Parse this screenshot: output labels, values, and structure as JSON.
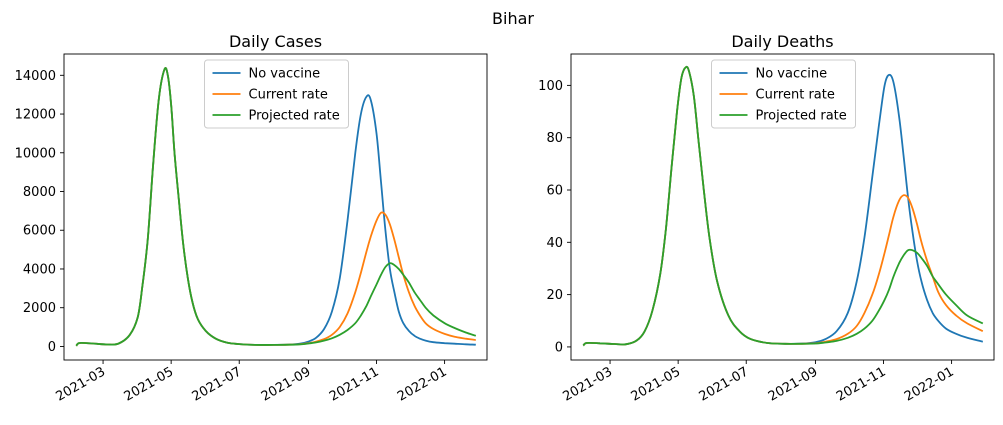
{
  "figure": {
    "suptitle": "Bihar"
  },
  "colors": {
    "No vaccine": "#1f77b4",
    "Current rate": "#ff7f0e",
    "Projected rate": "#2ca02c"
  },
  "chart_data": [
    {
      "type": "line",
      "title": "Daily Cases",
      "xlabel": "",
      "ylabel": "",
      "x_ticks": [
        "2021-03",
        "2021-05",
        "2021-07",
        "2021-09",
        "2021-11",
        "2022-01"
      ],
      "x_range": [
        "2021-01-25",
        "2022-02-08"
      ],
      "y_ticks": [
        0,
        2000,
        4000,
        6000,
        8000,
        10000,
        12000,
        14000
      ],
      "ylim": [
        -700,
        15100
      ],
      "legend": "top-center",
      "x": [
        "2021-02-05",
        "2021-02-08",
        "2021-02-20",
        "2021-03-05",
        "2021-03-15",
        "2021-03-25",
        "2021-04-01",
        "2021-04-05",
        "2021-04-10",
        "2021-04-15",
        "2021-04-20",
        "2021-04-25",
        "2021-04-28",
        "2021-05-01",
        "2021-05-04",
        "2021-05-08",
        "2021-05-12",
        "2021-05-16",
        "2021-05-20",
        "2021-05-25",
        "2021-06-01",
        "2021-06-10",
        "2021-06-20",
        "2021-07-01",
        "2021-07-15",
        "2021-08-01",
        "2021-08-15",
        "2021-08-25",
        "2021-09-01",
        "2021-09-08",
        "2021-09-15",
        "2021-09-22",
        "2021-09-29",
        "2021-10-06",
        "2021-10-13",
        "2021-10-18",
        "2021-10-23",
        "2021-10-27",
        "2021-11-01",
        "2021-11-05",
        "2021-11-09",
        "2021-11-13",
        "2021-11-17",
        "2021-11-21",
        "2021-11-25",
        "2021-11-30",
        "2021-12-05",
        "2021-12-10",
        "2021-12-15",
        "2021-12-22",
        "2022-01-01",
        "2022-01-10",
        "2022-01-20",
        "2022-01-29"
      ],
      "series": [
        {
          "name": "No vaccine",
          "values": [
            30,
            180,
            150,
            100,
            150,
            600,
            1500,
            3000,
            5500,
            9500,
            12800,
            14300,
            14000,
            12500,
            10000,
            7500,
            5200,
            3500,
            2300,
            1400,
            800,
            400,
            200,
            120,
            80,
            80,
            100,
            150,
            250,
            450,
            900,
            1800,
            3500,
            6500,
            10000,
            12000,
            12900,
            12700,
            11000,
            8500,
            6000,
            4000,
            2800,
            1800,
            1200,
            800,
            550,
            400,
            300,
            220,
            170,
            140,
            110,
            90
          ]
        },
        {
          "name": "Current rate",
          "values": [
            30,
            180,
            150,
            100,
            150,
            600,
            1500,
            3000,
            5500,
            9500,
            12800,
            14300,
            14000,
            12500,
            10000,
            7500,
            5200,
            3500,
            2300,
            1400,
            800,
            400,
            200,
            120,
            80,
            80,
            90,
            120,
            170,
            250,
            380,
            600,
            1000,
            1700,
            2800,
            3800,
            4900,
            5700,
            6500,
            6900,
            6800,
            6300,
            5500,
            4600,
            3700,
            2800,
            2100,
            1600,
            1200,
            900,
            650,
            500,
            400,
            330
          ]
        },
        {
          "name": "Projected rate",
          "values": [
            30,
            180,
            150,
            100,
            150,
            600,
            1500,
            3000,
            5500,
            9500,
            12800,
            14300,
            14000,
            12500,
            10000,
            7500,
            5200,
            3500,
            2300,
            1400,
            800,
            400,
            200,
            120,
            80,
            80,
            90,
            110,
            150,
            210,
            300,
            420,
            600,
            850,
            1200,
            1600,
            2100,
            2600,
            3200,
            3700,
            4100,
            4300,
            4200,
            4000,
            3700,
            3300,
            2800,
            2400,
            2000,
            1600,
            1200,
            950,
            720,
            550
          ]
        }
      ]
    },
    {
      "type": "line",
      "title": "Daily Deaths",
      "xlabel": "",
      "ylabel": "",
      "x_ticks": [
        "2021-03",
        "2021-05",
        "2021-07",
        "2021-09",
        "2021-11",
        "2022-01"
      ],
      "x_range": [
        "2021-01-25",
        "2022-02-08"
      ],
      "y_ticks": [
        0,
        20,
        40,
        60,
        80,
        100
      ],
      "ylim": [
        -5,
        112
      ],
      "legend": "top-center",
      "x": [
        "2021-02-05",
        "2021-02-08",
        "2021-02-20",
        "2021-03-05",
        "2021-03-15",
        "2021-03-25",
        "2021-04-01",
        "2021-04-08",
        "2021-04-15",
        "2021-04-20",
        "2021-04-25",
        "2021-04-30",
        "2021-05-04",
        "2021-05-08",
        "2021-05-11",
        "2021-05-15",
        "2021-05-19",
        "2021-05-24",
        "2021-05-29",
        "2021-06-05",
        "2021-06-15",
        "2021-06-25",
        "2021-07-05",
        "2021-07-20",
        "2021-08-05",
        "2021-08-20",
        "2021-09-01",
        "2021-09-10",
        "2021-09-20",
        "2021-09-30",
        "2021-10-08",
        "2021-10-15",
        "2021-10-22",
        "2021-10-28",
        "2021-11-02",
        "2021-11-06",
        "2021-11-10",
        "2021-11-15",
        "2021-11-19",
        "2021-11-23",
        "2021-11-27",
        "2021-12-01",
        "2021-12-05",
        "2021-12-10",
        "2021-12-15",
        "2021-12-20",
        "2021-12-27",
        "2022-01-05",
        "2022-01-15",
        "2022-01-29"
      ],
      "series": [
        {
          "name": "No vaccine",
          "values": [
            0.5,
            1.5,
            1.4,
            1.1,
            1.0,
            2.5,
            6,
            14,
            28,
            45,
            68,
            90,
            103,
            107,
            105,
            96,
            80,
            60,
            42,
            25,
            12,
            6,
            3,
            1.5,
            1.2,
            1.3,
            1.8,
            3,
            6,
            13,
            25,
            42,
            65,
            85,
            100,
            104,
            101,
            88,
            73,
            57,
            44,
            33,
            25,
            18,
            13,
            10,
            7,
            5,
            3.5,
            2
          ]
        },
        {
          "name": "Current rate",
          "values": [
            0.5,
            1.5,
            1.4,
            1.1,
            1.0,
            2.5,
            6,
            14,
            28,
            45,
            68,
            90,
            103,
            107,
            105,
            96,
            80,
            60,
            42,
            25,
            12,
            6,
            3,
            1.5,
            1.2,
            1.2,
            1.4,
            2,
            3,
            5,
            8,
            13,
            20,
            28,
            36,
            43,
            50,
            56,
            58,
            57,
            53,
            47,
            40,
            33,
            27,
            21,
            16,
            12,
            9,
            6
          ]
        },
        {
          "name": "Projected rate",
          "values": [
            0.5,
            1.5,
            1.4,
            1.1,
            1.0,
            2.5,
            6,
            14,
            28,
            45,
            68,
            90,
            103,
            107,
            105,
            96,
            80,
            60,
            42,
            25,
            12,
            6,
            3,
            1.5,
            1.2,
            1.2,
            1.3,
            1.7,
            2.3,
            3.5,
            5,
            7,
            10,
            14,
            18,
            22,
            27,
            32,
            35,
            37,
            37,
            36,
            34,
            31,
            27,
            24,
            20,
            16,
            12,
            9
          ]
        }
      ]
    }
  ]
}
